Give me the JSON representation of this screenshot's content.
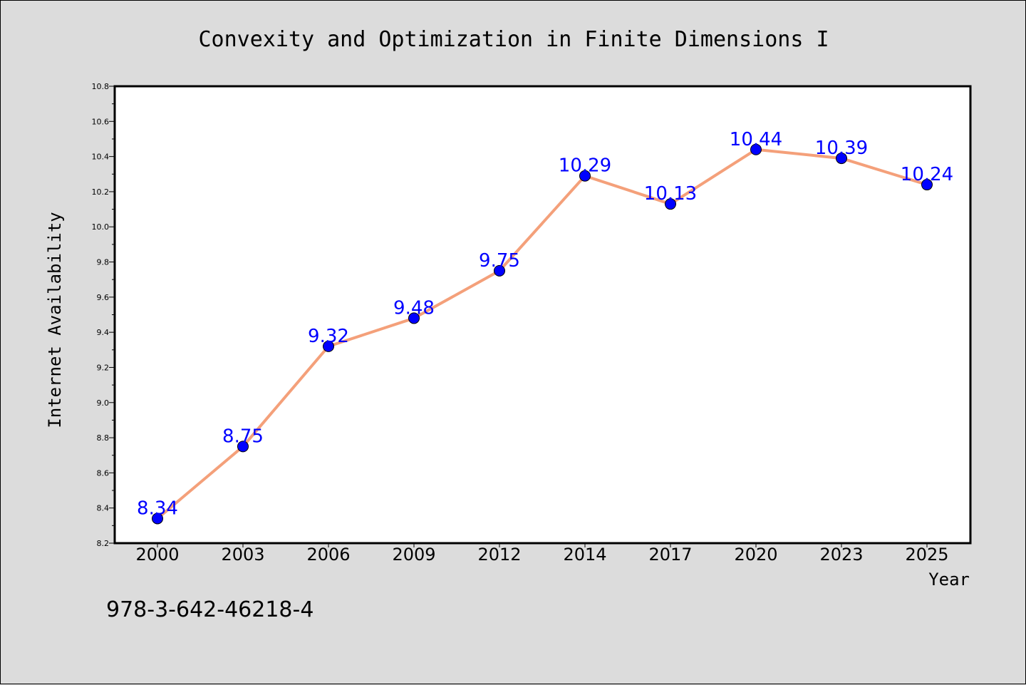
{
  "chart_data": {
    "type": "line",
    "title": "Convexity and Optimization in Finite Dimensions I",
    "xlabel": "Year",
    "ylabel": "Internet Availability",
    "categories": [
      "2000",
      "2003",
      "2006",
      "2009",
      "2012",
      "2014",
      "2017",
      "2020",
      "2023",
      "2025"
    ],
    "series": [
      {
        "values": [
          8.34,
          8.75,
          9.32,
          9.48,
          9.75,
          10.29,
          10.13,
          10.44,
          10.39,
          10.24
        ],
        "data_labels": [
          "8.34",
          "8.75",
          "9.32",
          "9.48",
          "9.75",
          "10.29",
          "10.13",
          "10.44",
          "10.39",
          "10.24"
        ],
        "line_color": "#f4a07a",
        "marker_color": "#0000ff"
      }
    ],
    "ylim": [
      8.2,
      10.8
    ],
    "yticks": [
      "8.2",
      "8.4",
      "8.6",
      "8.8",
      "9.0",
      "9.2",
      "9.4",
      "9.6",
      "9.8",
      "10.0",
      "10.2",
      "10.4",
      "10.6",
      "10.8"
    ],
    "grid": false,
    "legend": false
  },
  "footer": {
    "isbn": "978-3-642-46218-4"
  },
  "colors": {
    "background": "#dcdcdc",
    "plot_background": "#ffffff",
    "label_color": "#0000ff"
  }
}
